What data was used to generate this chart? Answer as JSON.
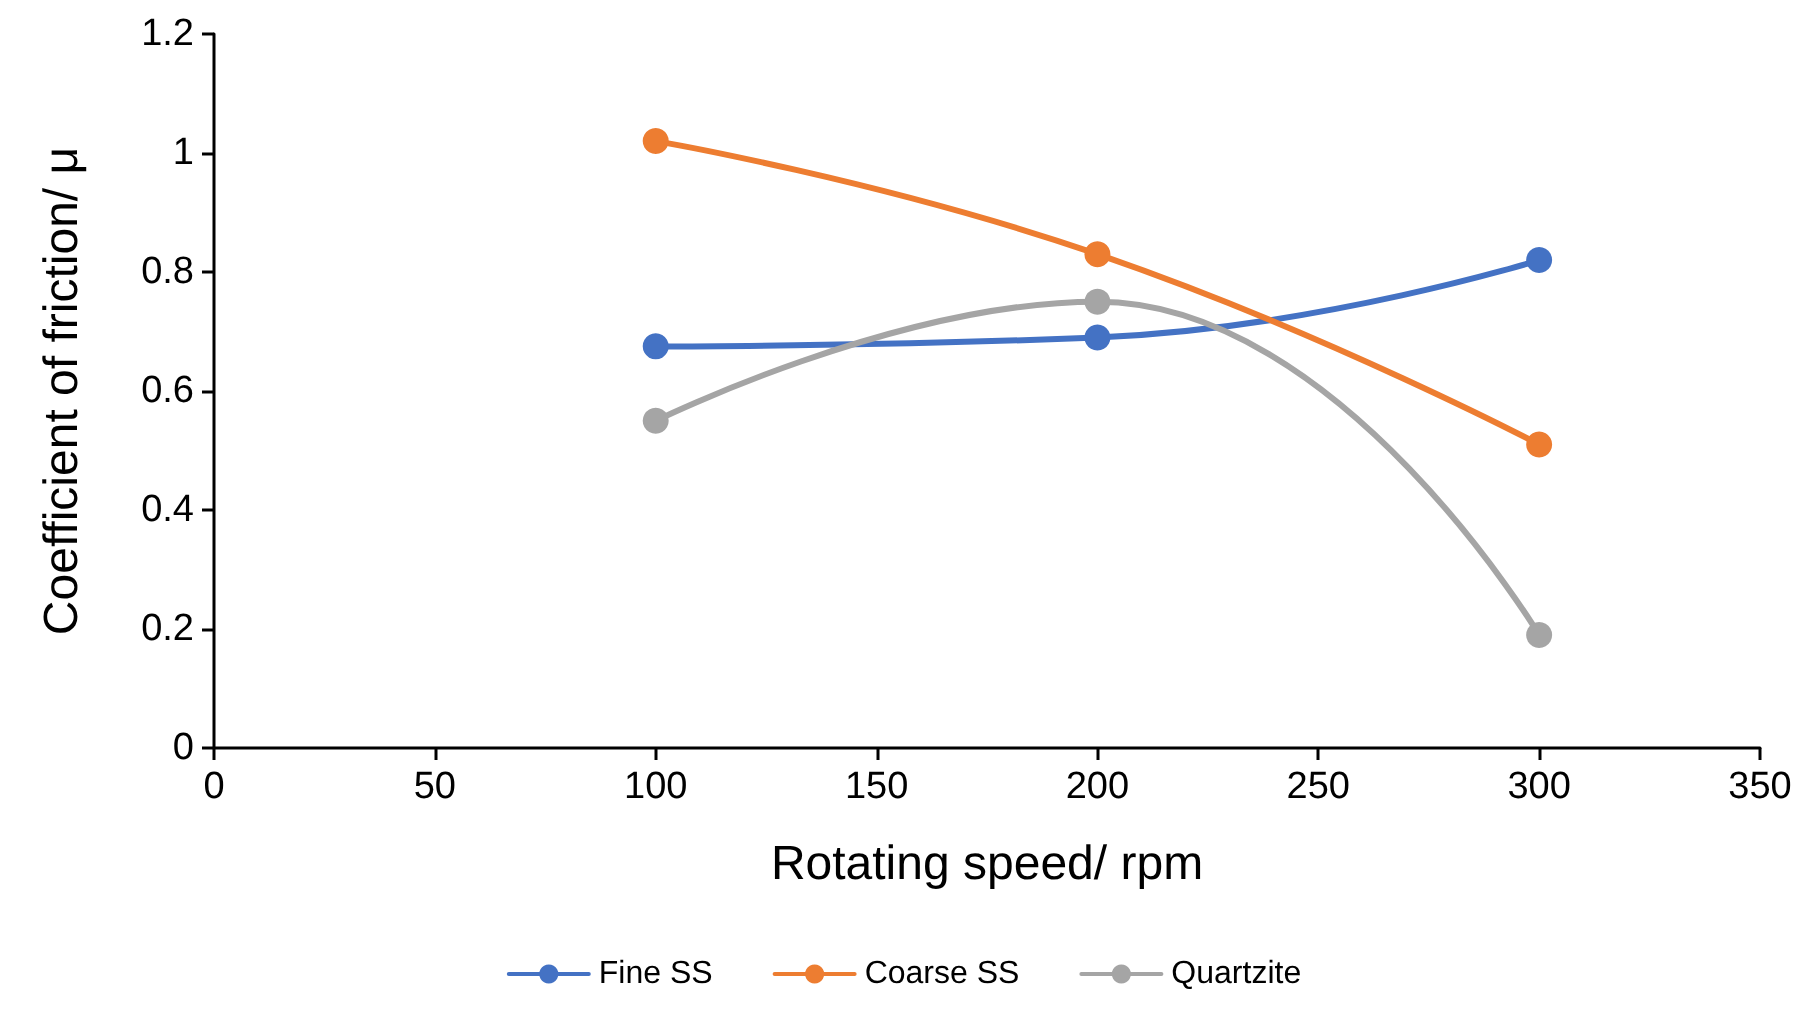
{
  "chart_data": {
    "type": "line",
    "xlabel": "Rotating speed/ rpm",
    "ylabel": "Coefficient of friction/ μ",
    "x": [
      100,
      200,
      300
    ],
    "series": [
      {
        "name": "Fine SS",
        "color": "#4472c4",
        "values": [
          0.675,
          0.69,
          0.82
        ]
      },
      {
        "name": "Coarse SS",
        "color": "#ed7d31",
        "values": [
          1.02,
          0.83,
          0.51
        ]
      },
      {
        "name": "Quartzite",
        "color": "#a5a5a5",
        "values": [
          0.55,
          0.75,
          0.19
        ]
      }
    ],
    "xlim": [
      0,
      350
    ],
    "xticks": [
      0,
      50,
      100,
      150,
      200,
      250,
      300,
      350
    ],
    "ylim": [
      0,
      1.2
    ],
    "yticks": [
      0,
      0.2,
      0.4,
      0.6,
      0.8,
      1,
      1.2
    ],
    "grid": false,
    "legend": "bottom",
    "marker": "circle",
    "line_style": "solid"
  }
}
